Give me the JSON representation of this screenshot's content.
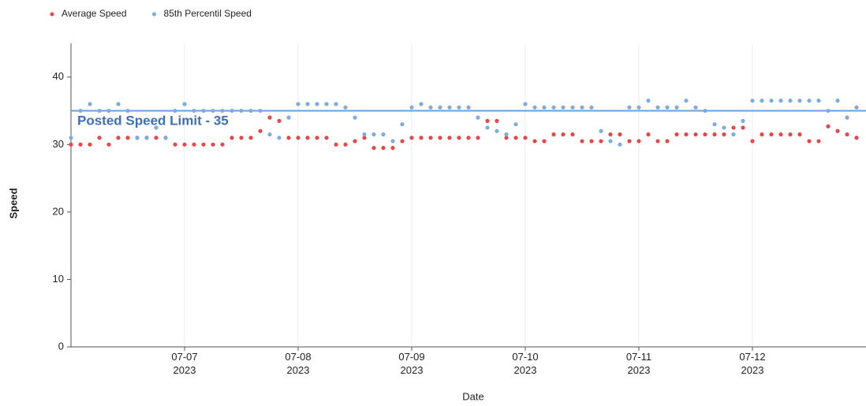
{
  "chart_data": {
    "type": "scatter",
    "legend": "top-left",
    "x_label": "Date",
    "y_label": "Speed",
    "annotation": "Posted Speed Limit - 35",
    "speed_limit": 35,
    "speed_limit_color": "#6a9fd8",
    "grid": true,
    "xlim": [
      "2023-07-06T00:00",
      "2023-07-13T00:00"
    ],
    "xticks": [
      {
        "value": "2023-07-07",
        "label": "07-07\n2023"
      },
      {
        "value": "2023-07-08",
        "label": "07-08\n2023"
      },
      {
        "value": "2023-07-09",
        "label": "07-09\n2023"
      },
      {
        "value": "2023-07-10",
        "label": "07-10\n2023"
      },
      {
        "value": "2023-07-11",
        "label": "07-11\n2023"
      },
      {
        "value": "2023-07-12",
        "label": "07-12\n2023"
      }
    ],
    "ylim": [
      0,
      45
    ],
    "yticks": [
      0,
      10,
      20,
      30,
      40
    ],
    "x": [
      "2023-07-06T00:00",
      "2023-07-06T02:00",
      "2023-07-06T04:00",
      "2023-07-06T06:00",
      "2023-07-06T08:00",
      "2023-07-06T10:00",
      "2023-07-06T12:00",
      "2023-07-06T14:00",
      "2023-07-06T16:00",
      "2023-07-06T18:00",
      "2023-07-06T20:00",
      "2023-07-06T22:00",
      "2023-07-07T00:00",
      "2023-07-07T02:00",
      "2023-07-07T04:00",
      "2023-07-07T06:00",
      "2023-07-07T08:00",
      "2023-07-07T10:00",
      "2023-07-07T12:00",
      "2023-07-07T14:00",
      "2023-07-07T16:00",
      "2023-07-07T18:00",
      "2023-07-07T20:00",
      "2023-07-07T22:00",
      "2023-07-08T00:00",
      "2023-07-08T02:00",
      "2023-07-08T04:00",
      "2023-07-08T06:00",
      "2023-07-08T08:00",
      "2023-07-08T10:00",
      "2023-07-08T12:00",
      "2023-07-08T14:00",
      "2023-07-08T16:00",
      "2023-07-08T18:00",
      "2023-07-08T20:00",
      "2023-07-08T22:00",
      "2023-07-09T00:00",
      "2023-07-09T02:00",
      "2023-07-09T04:00",
      "2023-07-09T06:00",
      "2023-07-09T08:00",
      "2023-07-09T10:00",
      "2023-07-09T12:00",
      "2023-07-09T14:00",
      "2023-07-09T16:00",
      "2023-07-09T18:00",
      "2023-07-09T20:00",
      "2023-07-09T22:00",
      "2023-07-10T00:00",
      "2023-07-10T02:00",
      "2023-07-10T04:00",
      "2023-07-10T06:00",
      "2023-07-10T08:00",
      "2023-07-10T10:00",
      "2023-07-10T12:00",
      "2023-07-10T14:00",
      "2023-07-10T16:00",
      "2023-07-10T18:00",
      "2023-07-10T20:00",
      "2023-07-10T22:00",
      "2023-07-11T00:00",
      "2023-07-11T02:00",
      "2023-07-11T04:00",
      "2023-07-11T06:00",
      "2023-07-11T08:00",
      "2023-07-11T10:00",
      "2023-07-11T12:00",
      "2023-07-11T14:00",
      "2023-07-11T16:00",
      "2023-07-11T18:00",
      "2023-07-11T20:00",
      "2023-07-11T22:00",
      "2023-07-12T00:00",
      "2023-07-12T02:00",
      "2023-07-12T04:00",
      "2023-07-12T06:00",
      "2023-07-12T08:00",
      "2023-07-12T10:00",
      "2023-07-12T12:00",
      "2023-07-12T14:00",
      "2023-07-12T16:00",
      "2023-07-12T18:00",
      "2023-07-12T20:00",
      "2023-07-12T22:00"
    ],
    "series": [
      {
        "name": "Average Speed",
        "color": "#e8474a",
        "values": [
          30,
          30,
          30,
          31,
          30,
          31,
          31,
          31,
          31,
          31,
          31,
          30,
          30,
          30,
          30,
          30,
          30,
          31,
          31,
          31,
          32,
          34,
          33.5,
          31,
          31,
          31,
          31,
          31,
          30,
          30,
          30.5,
          31,
          29.5,
          29.5,
          29.5,
          30.5,
          31,
          31,
          31,
          31,
          31,
          31,
          31,
          31,
          33.5,
          33.5,
          31,
          31,
          31,
          30.5,
          30.5,
          31.5,
          31.5,
          31.5,
          30.5,
          30.5,
          30.5,
          31.5,
          31.5,
          30.5,
          30.5,
          31.5,
          30.5,
          30.5,
          31.5,
          31.5,
          31.5,
          31.5,
          31.5,
          31.5,
          32.5,
          32.5,
          30.5,
          31.5,
          31.5,
          31.5,
          31.5,
          31.5,
          30.5,
          30.5,
          32.7,
          32,
          31.5,
          31
        ]
      },
      {
        "name": "85th Percentil Speed",
        "color": "#7aaee0",
        "values": [
          31,
          35,
          36,
          35,
          35,
          36,
          35,
          31,
          31,
          32.5,
          31,
          35,
          36,
          35,
          35,
          35,
          35,
          35,
          35,
          35,
          35,
          31.5,
          31,
          34,
          36,
          36,
          36,
          36,
          36,
          35.5,
          34,
          31.5,
          31.5,
          31.5,
          30.5,
          33,
          35.5,
          36,
          35.5,
          35.5,
          35.5,
          35.5,
          35.5,
          34,
          32.5,
          32,
          31.5,
          33,
          36,
          35.5,
          35.5,
          35.5,
          35.5,
          35.5,
          35.5,
          35.5,
          32,
          30.5,
          30,
          35.5,
          35.5,
          36.5,
          35.5,
          35.5,
          35.5,
          36.5,
          35.5,
          35,
          33,
          32.5,
          31.5,
          33.5,
          36.5,
          36.5,
          36.5,
          36.5,
          36.5,
          36.5,
          36.5,
          36.5,
          35,
          36.5,
          34,
          35.5
        ]
      }
    ]
  }
}
